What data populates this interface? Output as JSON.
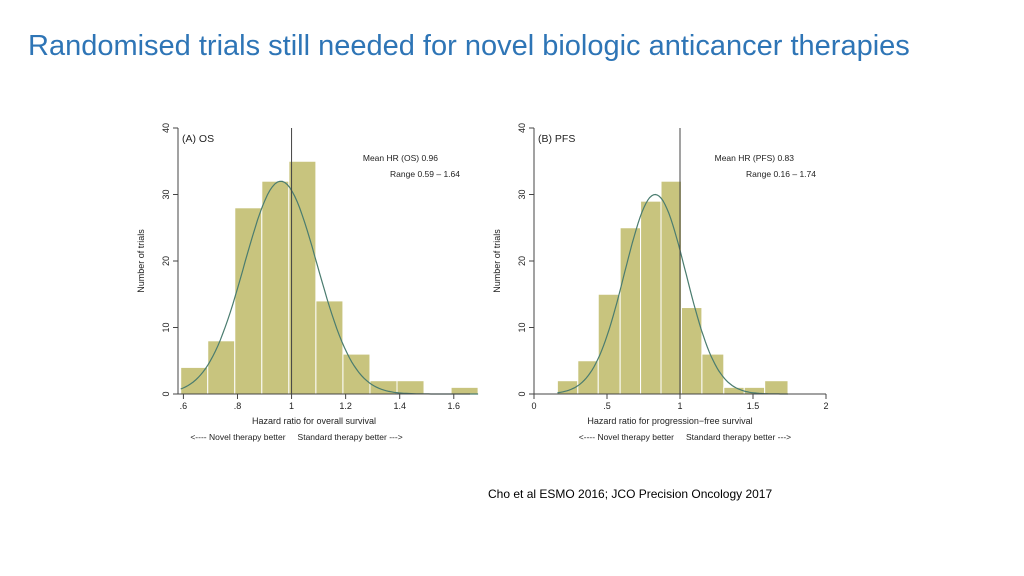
{
  "slide": {
    "title": "Randomised trials still needed for novel biologic anticancer therapies",
    "citation": "Cho et al ESMO 2016; JCO Precision Oncology 2017"
  },
  "colors": {
    "title": "#2e75b6",
    "bar_fill": "#c8c47e",
    "bar_stroke": "#ffffff",
    "curve": "#4a7c6f",
    "axis": "#444444"
  },
  "chart_data": [
    {
      "type": "histogram",
      "panel_label": "(A) OS",
      "xlabel": "Hazard ratio for overall survival",
      "ylabel": "Number of trials",
      "direction_left": "<---- Novel therapy better",
      "direction_right": "Standard therapy better --->",
      "annotation_lines": [
        "Mean HR (OS) 0.96",
        "Range 0.59 – 1.64"
      ],
      "xlim": [
        0.58,
        1.66
      ],
      "ylim": [
        0,
        40
      ],
      "x_ticks": [
        0.6,
        0.8,
        1.0,
        1.2,
        1.4,
        1.6
      ],
      "x_tick_labels": [
        ".6",
        ".8",
        "1",
        "1.2",
        "1.4",
        "1.6"
      ],
      "y_ticks": [
        0,
        10,
        20,
        30,
        40
      ],
      "y_tick_labels": [
        "0",
        "10",
        "20",
        "30",
        "40"
      ],
      "reference_line_x": 1.0,
      "bins": [
        {
          "x0": 0.59,
          "x1": 0.69,
          "count": 4
        },
        {
          "x0": 0.69,
          "x1": 0.79,
          "count": 8
        },
        {
          "x0": 0.79,
          "x1": 0.89,
          "count": 28
        },
        {
          "x0": 0.89,
          "x1": 0.99,
          "count": 32
        },
        {
          "x0": 0.99,
          "x1": 1.09,
          "count": 35
        },
        {
          "x0": 1.09,
          "x1": 1.19,
          "count": 14
        },
        {
          "x0": 1.19,
          "x1": 1.29,
          "count": 6
        },
        {
          "x0": 1.29,
          "x1": 1.39,
          "count": 2
        },
        {
          "x0": 1.39,
          "x1": 1.49,
          "count": 2
        },
        {
          "x0": 1.49,
          "x1": 1.59,
          "count": 0
        },
        {
          "x0": 1.59,
          "x1": 1.69,
          "count": 1
        }
      ],
      "normal_curve": {
        "mean": 0.96,
        "sd": 0.135,
        "peak": 32
      }
    },
    {
      "type": "histogram",
      "panel_label": "(B) PFS",
      "xlabel": "Hazard ratio for progression−free survival",
      "ylabel": "Number of trials",
      "direction_left": "<---- Novel therapy better",
      "direction_right": "Standard therapy better --->",
      "annotation_lines": [
        "Mean HR (PFS) 0.83",
        "Range 0.16 – 1.74"
      ],
      "xlim": [
        0,
        2
      ],
      "ylim": [
        0,
        40
      ],
      "x_ticks": [
        0,
        0.5,
        1.0,
        1.5,
        2.0
      ],
      "x_tick_labels": [
        "0",
        ".5",
        "1",
        "1.5",
        "2"
      ],
      "y_ticks": [
        0,
        10,
        20,
        30,
        40
      ],
      "y_tick_labels": [
        "0",
        "10",
        "20",
        "30",
        "40"
      ],
      "reference_line_x": 1.0,
      "bins": [
        {
          "x0": 0.16,
          "x1": 0.3,
          "count": 2
        },
        {
          "x0": 0.3,
          "x1": 0.44,
          "count": 5
        },
        {
          "x0": 0.44,
          "x1": 0.59,
          "count": 15
        },
        {
          "x0": 0.59,
          "x1": 0.73,
          "count": 25
        },
        {
          "x0": 0.73,
          "x1": 0.87,
          "count": 29
        },
        {
          "x0": 0.87,
          "x1": 1.01,
          "count": 32
        },
        {
          "x0": 1.01,
          "x1": 1.15,
          "count": 13
        },
        {
          "x0": 1.15,
          "x1": 1.3,
          "count": 6
        },
        {
          "x0": 1.3,
          "x1": 1.44,
          "count": 1
        },
        {
          "x0": 1.44,
          "x1": 1.58,
          "count": 1
        },
        {
          "x0": 1.58,
          "x1": 1.74,
          "count": 2
        }
      ],
      "normal_curve": {
        "mean": 0.83,
        "sd": 0.21,
        "peak": 30
      }
    }
  ]
}
